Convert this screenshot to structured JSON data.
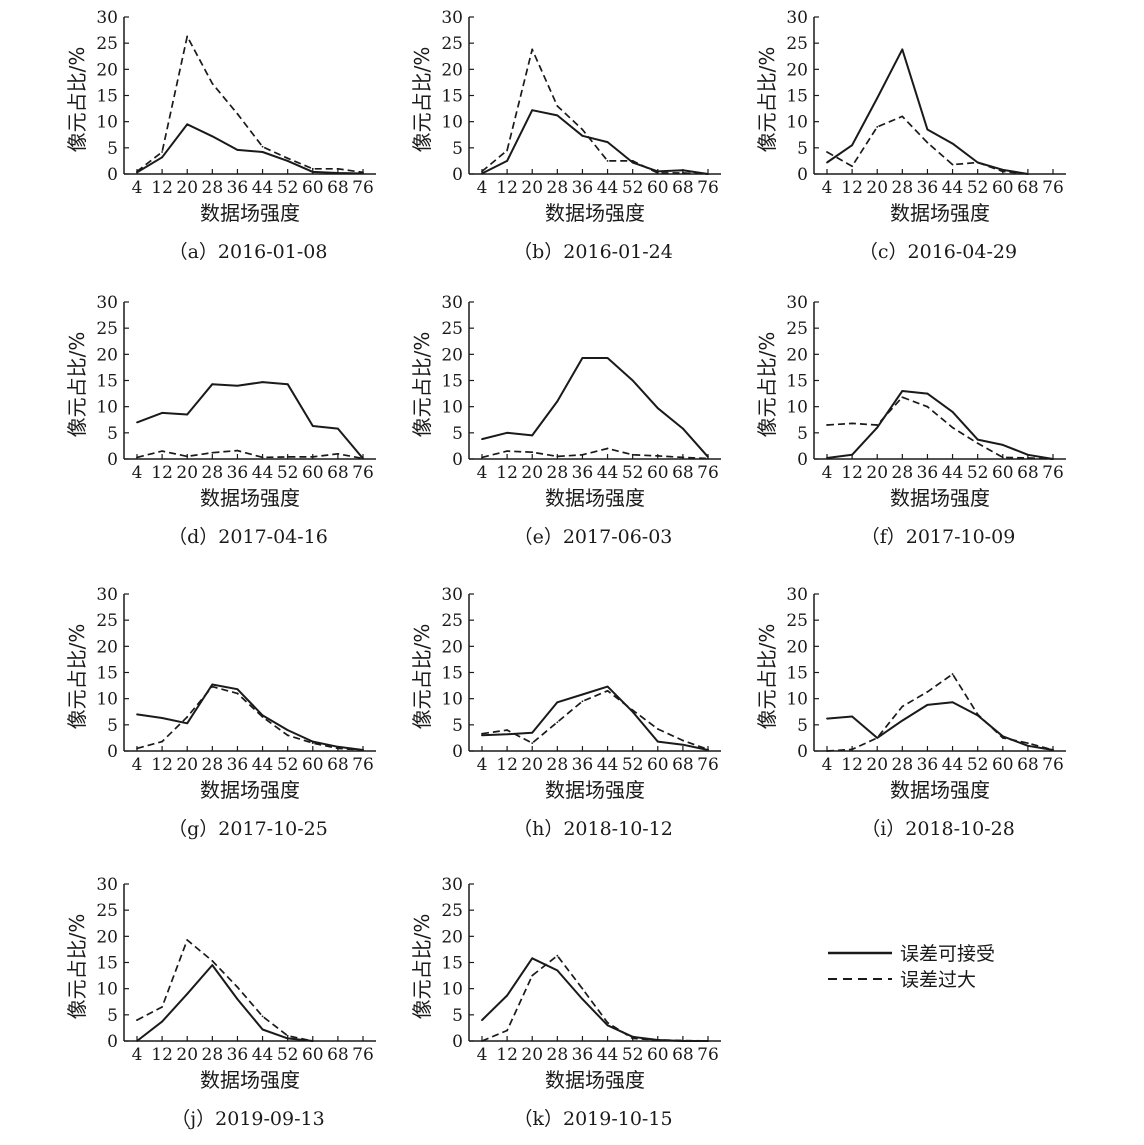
{
  "figure": {
    "legend": {
      "acceptable": "误差可接受",
      "excessive": "误差过大"
    }
  },
  "chart_data": [
    {
      "type": "line",
      "title": "（a）2016-01-08",
      "xlabel": "数据场强度",
      "ylabel": "像元占比/%",
      "x": [
        4,
        12,
        20,
        28,
        36,
        44,
        52,
        60,
        68,
        76
      ],
      "ylim": [
        0,
        30
      ],
      "yticks": [
        0,
        5,
        10,
        15,
        20,
        25,
        30
      ],
      "series": [
        {
          "name": "误差可接受",
          "style": "solid",
          "values": [
            0.3,
            3.2,
            9.5,
            7.2,
            4.6,
            4.2,
            2.5,
            0.4,
            0.2,
            0.1
          ]
        },
        {
          "name": "误差过大",
          "style": "dashed",
          "values": [
            0.5,
            4.2,
            26.3,
            17.3,
            11.5,
            5.2,
            3.0,
            1.0,
            1.0,
            0.3
          ]
        }
      ]
    },
    {
      "type": "line",
      "title": "（b）2016-01-24",
      "xlabel": "数据场强度",
      "ylabel": "像元占比/%",
      "x": [
        4,
        12,
        20,
        28,
        36,
        44,
        52,
        60,
        68,
        76
      ],
      "ylim": [
        0,
        30
      ],
      "yticks": [
        0,
        5,
        10,
        15,
        20,
        25,
        30
      ],
      "series": [
        {
          "name": "误差可接受",
          "style": "solid",
          "values": [
            0.1,
            2.5,
            12.2,
            11.2,
            7.3,
            6.1,
            2.2,
            0.5,
            0.7,
            0.0
          ]
        },
        {
          "name": "误差过大",
          "style": "dashed",
          "values": [
            0.5,
            4.5,
            23.8,
            13.0,
            8.5,
            2.5,
            2.5,
            0.2,
            0.2,
            0.0
          ]
        }
      ]
    },
    {
      "type": "line",
      "title": "（c）2016-04-29",
      "xlabel": "数据场强度",
      "ylabel": "像元占比/%",
      "x": [
        4,
        12,
        20,
        28,
        36,
        44,
        52,
        60,
        68,
        76
      ],
      "ylim": [
        0,
        30
      ],
      "yticks": [
        0,
        5,
        10,
        15,
        20,
        25,
        30
      ],
      "series": [
        {
          "name": "误差可接受",
          "style": "solid",
          "values": [
            2.2,
            5.5,
            14.5,
            23.8,
            8.5,
            5.8,
            2.2,
            0.8,
            0.0,
            null
          ]
        },
        {
          "name": "误差过大",
          "style": "dashed",
          "values": [
            4.2,
            1.5,
            9.0,
            11.0,
            6.0,
            1.8,
            2.2,
            0.5,
            0.0,
            null
          ]
        }
      ]
    },
    {
      "type": "line",
      "title": "（d）2017-04-16",
      "xlabel": "数据场强度",
      "ylabel": "像元占比/%",
      "x": [
        4,
        12,
        20,
        28,
        36,
        44,
        52,
        60,
        68,
        76
      ],
      "ylim": [
        0,
        30
      ],
      "yticks": [
        0,
        5,
        10,
        15,
        20,
        25,
        30
      ],
      "series": [
        {
          "name": "误差可接受",
          "style": "solid",
          "values": [
            7.0,
            8.8,
            8.5,
            14.3,
            14.0,
            14.7,
            14.3,
            6.3,
            5.8,
            0.1
          ]
        },
        {
          "name": "误差过大",
          "style": "dashed",
          "values": [
            0.3,
            1.5,
            0.5,
            1.2,
            1.6,
            0.3,
            0.4,
            0.4,
            1.0,
            0.1
          ]
        }
      ]
    },
    {
      "type": "line",
      "title": "（e）2017-06-03",
      "xlabel": "数据场强度",
      "ylabel": "像元占比/%",
      "x": [
        4,
        12,
        20,
        28,
        36,
        44,
        52,
        60,
        68,
        76
      ],
      "ylim": [
        0,
        30
      ],
      "yticks": [
        0,
        5,
        10,
        15,
        20,
        25,
        30
      ],
      "series": [
        {
          "name": "误差可接受",
          "style": "solid",
          "values": [
            3.8,
            5.0,
            4.5,
            11.0,
            19.3,
            19.3,
            15.0,
            9.7,
            5.8,
            0.4
          ]
        },
        {
          "name": "误差过大",
          "style": "dashed",
          "values": [
            0.3,
            1.5,
            1.3,
            0.5,
            0.8,
            2.0,
            0.8,
            0.6,
            0.3,
            0.1
          ]
        }
      ]
    },
    {
      "type": "line",
      "title": "（f）2017-10-09",
      "xlabel": "数据场强度",
      "ylabel": "像元占比/%",
      "x": [
        4,
        12,
        20,
        28,
        36,
        44,
        52,
        60,
        68,
        76
      ],
      "ylim": [
        0,
        30
      ],
      "yticks": [
        0,
        5,
        10,
        15,
        20,
        25,
        30
      ],
      "series": [
        {
          "name": "误差可接受",
          "style": "solid",
          "values": [
            0.2,
            0.8,
            6.0,
            13.0,
            12.5,
            9.0,
            3.7,
            2.7,
            0.8,
            0.0
          ]
        },
        {
          "name": "误差过大",
          "style": "dashed",
          "values": [
            6.5,
            6.8,
            6.5,
            11.8,
            10.0,
            6.0,
            3.0,
            0.3,
            0.2,
            0.0
          ]
        }
      ]
    },
    {
      "type": "line",
      "title": "（g）2017-10-25",
      "xlabel": "数据场强度",
      "ylabel": "像元占比/%",
      "x": [
        4,
        12,
        20,
        28,
        36,
        44,
        52,
        60,
        68,
        76
      ],
      "ylim": [
        0,
        30
      ],
      "yticks": [
        0,
        5,
        10,
        15,
        20,
        25,
        30
      ],
      "series": [
        {
          "name": "误差可接受",
          "style": "solid",
          "values": [
            7.0,
            6.3,
            5.3,
            12.7,
            11.8,
            6.8,
            4.0,
            1.8,
            0.8,
            0.2
          ]
        },
        {
          "name": "误差过大",
          "style": "dashed",
          "values": [
            0.5,
            1.8,
            6.5,
            12.3,
            11.0,
            6.5,
            3.0,
            1.5,
            0.5,
            0.2
          ]
        }
      ]
    },
    {
      "type": "line",
      "title": "（h）2018-10-12",
      "xlabel": "数据场强度",
      "ylabel": "像元占比/%",
      "x": [
        4,
        12,
        20,
        28,
        36,
        44,
        52,
        60,
        68,
        76
      ],
      "ylim": [
        0,
        30
      ],
      "yticks": [
        0,
        5,
        10,
        15,
        20,
        25,
        30
      ],
      "series": [
        {
          "name": "误差可接受",
          "style": "solid",
          "values": [
            3.0,
            3.2,
            3.5,
            9.3,
            10.8,
            12.3,
            7.5,
            1.8,
            1.2,
            0.2
          ]
        },
        {
          "name": "误差过大",
          "style": "dashed",
          "values": [
            3.3,
            4.0,
            1.5,
            5.5,
            9.5,
            11.5,
            7.8,
            4.2,
            2.0,
            0.3
          ]
        }
      ]
    },
    {
      "type": "line",
      "title": "（i）2018-10-28",
      "xlabel": "数据场强度",
      "ylabel": "像元占比/%",
      "x": [
        4,
        12,
        20,
        28,
        36,
        44,
        52,
        60,
        68,
        76
      ],
      "ylim": [
        0,
        30
      ],
      "yticks": [
        0,
        5,
        10,
        15,
        20,
        25,
        30
      ],
      "series": [
        {
          "name": "误差可接受",
          "style": "solid",
          "values": [
            6.2,
            6.6,
            2.5,
            5.8,
            8.8,
            9.3,
            6.8,
            2.8,
            1.0,
            0.2
          ]
        },
        {
          "name": "误差过大",
          "style": "dashed",
          "values": [
            0.0,
            0.3,
            2.5,
            8.5,
            11.3,
            14.7,
            7.0,
            2.5,
            1.5,
            0.2
          ]
        }
      ]
    },
    {
      "type": "line",
      "title": "（j）2019-09-13",
      "xlabel": "数据场强度",
      "ylabel": "像元占比/%",
      "x": [
        4,
        12,
        20,
        28,
        36,
        44,
        52,
        60,
        68,
        76
      ],
      "ylim": [
        0,
        30
      ],
      "yticks": [
        0,
        5,
        10,
        15,
        20,
        25,
        30
      ],
      "series": [
        {
          "name": "误差可接受",
          "style": "solid",
          "values": [
            0.0,
            3.7,
            9.0,
            14.5,
            8.0,
            2.2,
            0.5,
            0.0,
            null,
            null
          ]
        },
        {
          "name": "误差过大",
          "style": "dashed",
          "values": [
            4.0,
            6.5,
            19.3,
            15.3,
            10.3,
            4.7,
            1.0,
            0.0,
            null,
            null
          ]
        }
      ]
    },
    {
      "type": "line",
      "title": "（k）2019-10-15",
      "xlabel": "数据场强度",
      "ylabel": "像元占比/%",
      "x": [
        4,
        12,
        20,
        28,
        36,
        44,
        52,
        60,
        68,
        76
      ],
      "ylim": [
        0,
        30
      ],
      "yticks": [
        0,
        5,
        10,
        15,
        20,
        25,
        30
      ],
      "series": [
        {
          "name": "误差可接受",
          "style": "solid",
          "values": [
            4.0,
            8.7,
            15.8,
            13.5,
            8.0,
            3.0,
            0.8,
            0.2,
            0.0,
            0.0
          ]
        },
        {
          "name": "误差过大",
          "style": "dashed",
          "values": [
            0.0,
            2.0,
            12.5,
            16.3,
            10.0,
            3.5,
            0.5,
            0.2,
            0.1,
            0.0
          ]
        }
      ]
    }
  ]
}
